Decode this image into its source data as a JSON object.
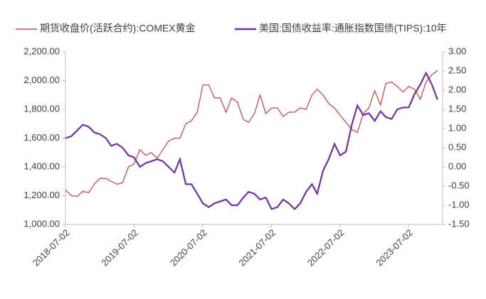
{
  "chart_data": {
    "type": "line",
    "x": [
      "2018-07-02",
      "2018-08-02",
      "2018-09-02",
      "2018-10-02",
      "2018-11-02",
      "2018-12-02",
      "2019-01-02",
      "2019-02-02",
      "2019-03-02",
      "2019-04-02",
      "2019-05-02",
      "2019-06-02",
      "2019-07-02",
      "2019-08-02",
      "2019-09-02",
      "2019-10-02",
      "2019-11-02",
      "2019-12-02",
      "2020-01-02",
      "2020-02-02",
      "2020-03-02",
      "2020-04-02",
      "2020-05-02",
      "2020-06-02",
      "2020-07-02",
      "2020-08-02",
      "2020-09-02",
      "2020-10-02",
      "2020-11-02",
      "2020-12-02",
      "2021-01-02",
      "2021-02-02",
      "2021-03-02",
      "2021-04-02",
      "2021-05-02",
      "2021-06-02",
      "2021-07-02",
      "2021-08-02",
      "2021-09-02",
      "2021-10-02",
      "2021-11-02",
      "2021-12-02",
      "2022-01-02",
      "2022-02-02",
      "2022-03-02",
      "2022-04-02",
      "2022-05-02",
      "2022-06-02",
      "2022-07-02",
      "2022-08-02",
      "2022-09-02",
      "2022-10-02",
      "2022-11-02",
      "2022-12-02",
      "2023-01-02",
      "2023-02-02",
      "2023-03-02",
      "2023-04-02",
      "2023-05-02",
      "2023-06-02",
      "2023-07-02",
      "2023-08-02",
      "2023-09-02",
      "2023-10-02",
      "2023-11-02",
      "2023-12-02"
    ],
    "series": [
      {
        "name": "期货收盘价(活跃合约):COMEX黄金",
        "color": "#c0504d",
        "values": [
          1240,
          1200,
          1195,
          1230,
          1220,
          1280,
          1320,
          1320,
          1300,
          1280,
          1290,
          1400,
          1420,
          1520,
          1480,
          1500,
          1460,
          1520,
          1580,
          1600,
          1600,
          1700,
          1720,
          1780,
          1970,
          1970,
          1880,
          1880,
          1780,
          1880,
          1850,
          1730,
          1710,
          1770,
          1900,
          1770,
          1810,
          1810,
          1750,
          1780,
          1780,
          1810,
          1800,
          1900,
          1940,
          1900,
          1840,
          1810,
          1760,
          1710,
          1660,
          1640,
          1770,
          1810,
          1930,
          1830,
          1980,
          1990,
          1960,
          1920,
          1960,
          1940,
          1870,
          1990,
          2040,
          2070
        ]
      },
      {
        "name": "美国:国债收益率:通胀指数国债(TIPS):10年",
        "color": "#7030a0",
        "axis": "y2",
        "values": [
          0.75,
          0.8,
          0.95,
          1.1,
          1.05,
          0.9,
          0.85,
          0.75,
          0.55,
          0.6,
          0.5,
          0.3,
          0.25,
          0.0,
          0.1,
          0.15,
          0.2,
          0.15,
          0.0,
          -0.15,
          0.2,
          -0.45,
          -0.45,
          -0.7,
          -0.95,
          -1.05,
          -0.95,
          -0.9,
          -0.85,
          -1.0,
          -1.0,
          -0.8,
          -0.65,
          -0.7,
          -0.85,
          -0.8,
          -1.1,
          -1.05,
          -0.85,
          -0.95,
          -1.1,
          -0.95,
          -0.65,
          -0.45,
          -0.7,
          -0.1,
          0.2,
          0.6,
          0.3,
          0.4,
          1.1,
          1.6,
          1.35,
          1.4,
          1.2,
          1.45,
          1.3,
          1.25,
          1.5,
          1.55,
          1.55,
          1.9,
          2.15,
          2.45,
          2.15,
          1.75
        ]
      }
    ],
    "xlim": [
      "2018-07-02",
      "2023-12-29"
    ],
    "xticks": [
      "2018-07-02",
      "2019-07-02",
      "2020-07-02",
      "2021-07-02",
      "2022-07-02",
      "2023-07-02"
    ],
    "ylim": [
      1000,
      2200
    ],
    "yticks": [
      {
        "value": 1000,
        "label": "1,000.00"
      },
      {
        "value": 1200,
        "label": "1,200.00"
      },
      {
        "value": 1400,
        "label": "1,400.00"
      },
      {
        "value": 1600,
        "label": "1,600.00"
      },
      {
        "value": 1800,
        "label": "1,800.00"
      },
      {
        "value": 2000,
        "label": "2,000.00"
      },
      {
        "value": 2200,
        "label": "2,200.00"
      }
    ],
    "y2lim": [
      -1.5,
      3
    ],
    "y2ticks": [
      {
        "value": -1.5,
        "label": "-1.50"
      },
      {
        "value": -1,
        "label": "-1.00"
      },
      {
        "value": -0.5,
        "label": "-0.50"
      },
      {
        "value": 0,
        "label": "0.00"
      },
      {
        "value": 0.5,
        "label": "0.50"
      },
      {
        "value": 1,
        "label": "1.00"
      },
      {
        "value": 1.5,
        "label": "1.50"
      },
      {
        "value": 2,
        "label": "2.00"
      },
      {
        "value": 2.5,
        "label": "2.50"
      },
      {
        "value": 3,
        "label": "3.00"
      }
    ],
    "legend": "top"
  }
}
